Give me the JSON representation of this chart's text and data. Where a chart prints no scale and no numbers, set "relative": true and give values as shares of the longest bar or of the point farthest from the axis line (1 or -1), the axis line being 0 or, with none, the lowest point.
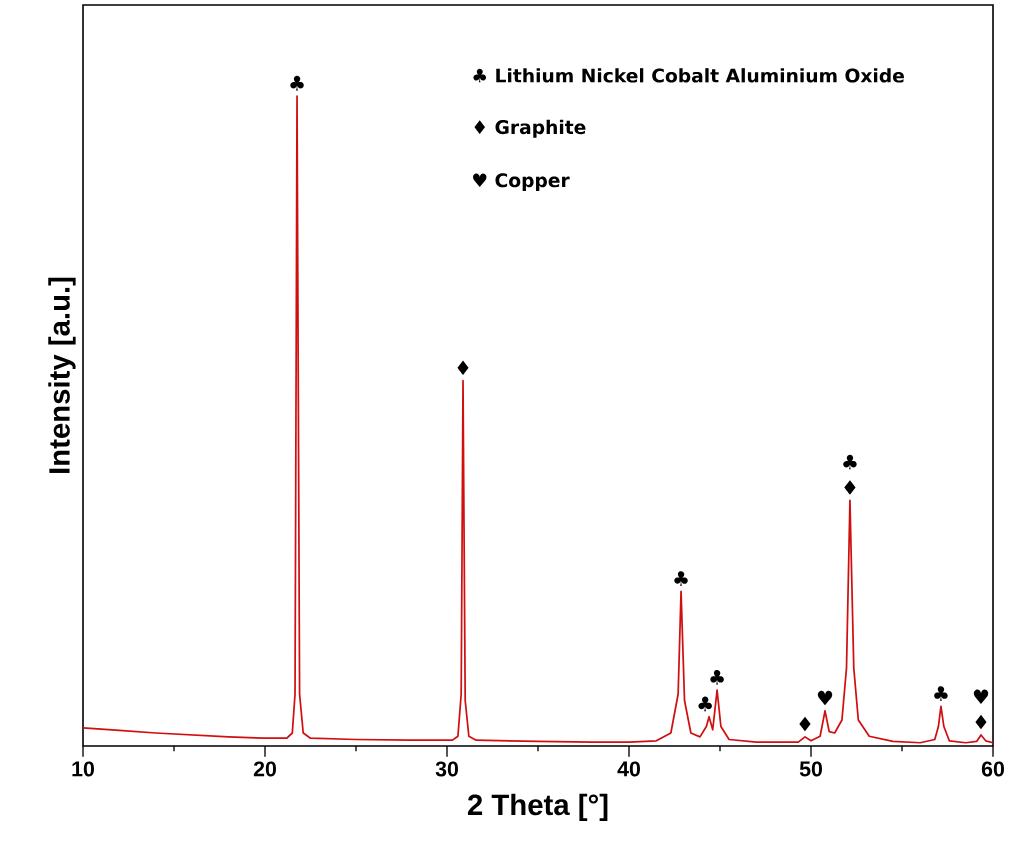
{
  "chart_data": {
    "type": "line",
    "relative": true,
    "xlabel": "2 Theta [°]",
    "ylabel": "Intensity [a.u.]",
    "xlim": [
      10,
      60
    ],
    "xticks": [
      10,
      {
        "value": 15,
        "label": null
      },
      20,
      {
        "value": 25,
        "label": null
      },
      30,
      {
        "value": 35,
        "label": null
      },
      40,
      {
        "value": 45,
        "label": null
      },
      50,
      {
        "value": 55,
        "label": null
      },
      60
    ],
    "series": [
      {
        "color": "#d01010",
        "x": [
          10,
          12,
          14,
          16,
          18,
          20,
          21.2,
          21.5,
          21.65,
          21.76,
          21.9,
          22.1,
          22.5,
          25,
          28,
          30.3,
          30.6,
          30.78,
          30.88,
          31.0,
          31.2,
          31.6,
          35,
          38,
          40,
          41.5,
          42.3,
          42.7,
          42.86,
          43.05,
          43.4,
          43.9,
          44.25,
          44.4,
          44.6,
          44.84,
          45.05,
          45.5,
          47,
          49.3,
          49.67,
          50.0,
          50.5,
          50.77,
          51.0,
          51.3,
          51.7,
          51.95,
          52.14,
          52.35,
          52.6,
          53.2,
          54.5,
          56,
          56.8,
          57.0,
          57.14,
          57.3,
          57.6,
          58.5,
          59.1,
          59.34,
          59.6,
          60
        ],
        "values": [
          0.028,
          0.024,
          0.02,
          0.017,
          0.014,
          0.012,
          0.012,
          0.02,
          0.08,
          1.0,
          0.08,
          0.02,
          0.012,
          0.01,
          0.009,
          0.009,
          0.015,
          0.08,
          0.562,
          0.07,
          0.015,
          0.009,
          0.007,
          0.006,
          0.006,
          0.008,
          0.02,
          0.08,
          0.238,
          0.07,
          0.02,
          0.014,
          0.03,
          0.045,
          0.025,
          0.086,
          0.03,
          0.01,
          0.006,
          0.006,
          0.014,
          0.008,
          0.015,
          0.054,
          0.022,
          0.02,
          0.04,
          0.12,
          0.378,
          0.12,
          0.04,
          0.015,
          0.007,
          0.005,
          0.01,
          0.03,
          0.061,
          0.03,
          0.008,
          0.005,
          0.007,
          0.017,
          0.008,
          0.005
        ]
      }
    ],
    "annotations": [
      "♣ Lithium Nickel Cobalt Aluminium Oxide",
      "♦ Graphite",
      "♥ Copper",
      {
        "text": "♣",
        "x": 21.76,
        "y": 1.0
      },
      {
        "text": "♦",
        "x": 30.88,
        "y": 0.562
      },
      {
        "text": "♣",
        "x": 42.86,
        "y": 0.238
      },
      {
        "text": "♣",
        "x": 44.4,
        "y": 0.045
      },
      {
        "text": "♣",
        "x": 44.84,
        "y": 0.086
      },
      {
        "text": "♦",
        "x": 49.67,
        "y": 0.014
      },
      {
        "text": "♥",
        "x": 50.77,
        "y": 0.054
      },
      {
        "text": "♦",
        "x": 52.14,
        "y": 0.378
      },
      {
        "text": "♣",
        "x": 52.14,
        "y": 0.378
      },
      {
        "text": "♣",
        "x": 57.14,
        "y": 0.061
      },
      {
        "text": "♦",
        "x": 59.34,
        "y": 0.017
      },
      {
        "text": "♥",
        "x": 59.34,
        "y": 0.017
      }
    ]
  }
}
